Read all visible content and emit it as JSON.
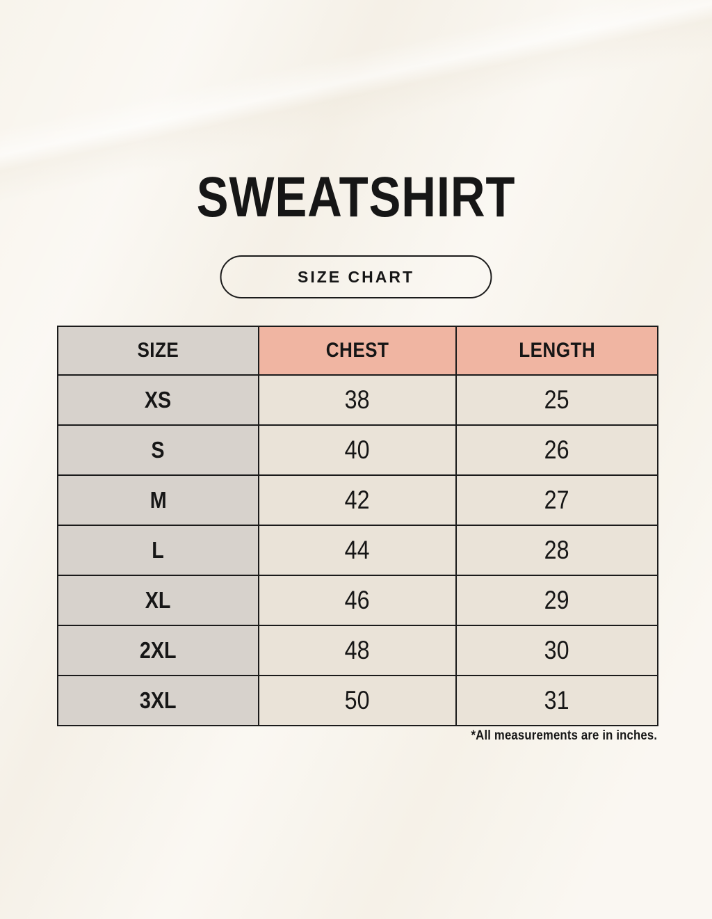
{
  "page": {
    "title": "SWEATSHIRT",
    "badge_label": "SIZE CHART",
    "footnote": "*All measurements are in inches."
  },
  "chart_data": {
    "type": "table",
    "title": "SWEATSHIRT SIZE CHART",
    "columns": [
      "SIZE",
      "CHEST",
      "LENGTH"
    ],
    "rows": [
      [
        "XS",
        "38",
        "25"
      ],
      [
        "S",
        "40",
        "26"
      ],
      [
        "M",
        "42",
        "27"
      ],
      [
        "L",
        "44",
        "28"
      ],
      [
        "XL",
        "46",
        "29"
      ],
      [
        "2XL",
        "48",
        "30"
      ],
      [
        "3XL",
        "50",
        "31"
      ]
    ],
    "units": "inches"
  },
  "colors": {
    "background": "#f8f4ec",
    "cell_cream": "#eae3d8",
    "col_gray": "#d7d2cc",
    "header_pink": "#f0b5a2",
    "line": "#1b1b1b",
    "text": "#161616"
  }
}
